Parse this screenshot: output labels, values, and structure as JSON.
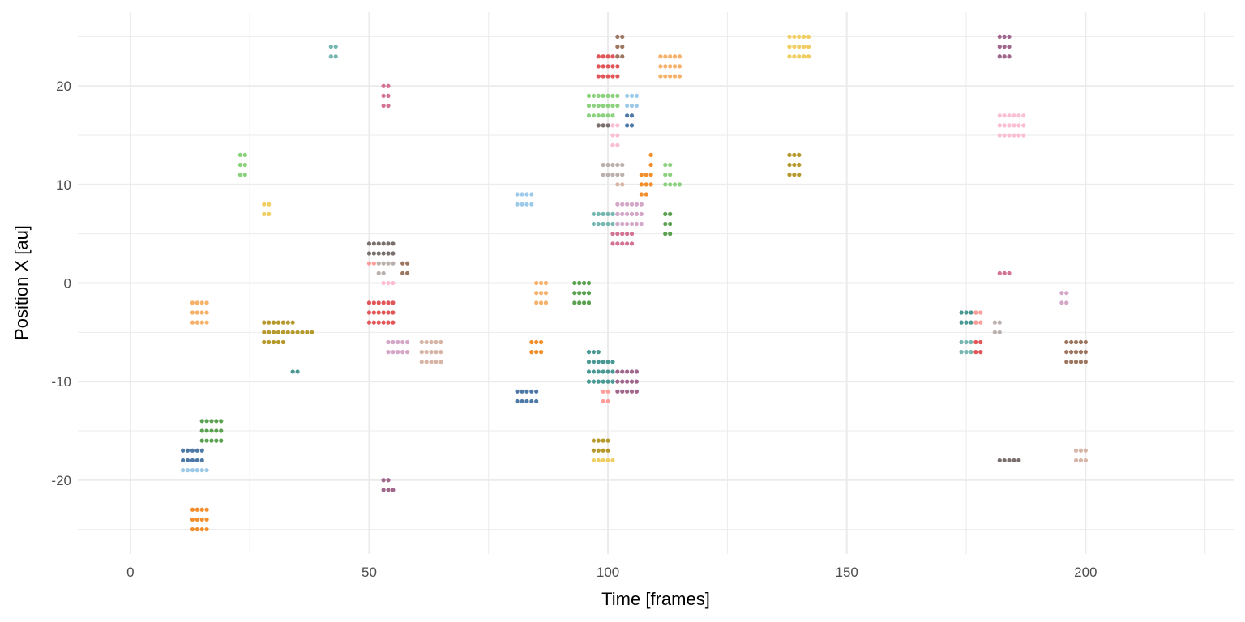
{
  "chart_data": {
    "type": "scatter",
    "title": "",
    "xlabel": "Time [frames]",
    "ylabel": "Position X [au]",
    "xlim": [
      -11,
      231
    ],
    "ylim": [
      -27.5,
      27.5
    ],
    "x_ticks": [
      0,
      50,
      100,
      150,
      200
    ],
    "y_ticks": [
      -20,
      -10,
      0,
      10,
      20
    ],
    "x_tick_labels": [
      "0",
      "50",
      "100",
      "150",
      "200"
    ],
    "y_tick_labels": [
      "-20",
      "-10",
      "0",
      "10",
      "20"
    ],
    "grid": true,
    "legend": "none",
    "background": "#ffffff",
    "grid_color": "#ebebeb",
    "series": [
      {
        "color": "#f28e2b",
        "clusters": [
          {
            "x0": 13,
            "n": 4,
            "ys": [
              -23,
              -24,
              -25
            ]
          },
          {
            "x0": 84,
            "n": 3,
            "ys": [
              -6,
              -7
            ]
          },
          {
            "x0": 107,
            "n": 3,
            "ys": [
              11,
              10
            ]
          },
          {
            "x0": 107,
            "n": 2,
            "ys": [
              9
            ]
          },
          {
            "x0": 109,
            "n": 1,
            "ys": [
              13,
              12
            ]
          }
        ]
      },
      {
        "color": "#4e79a7",
        "clusters": [
          {
            "x0": 11,
            "n": 5,
            "ys": [
              -17,
              -18
            ]
          },
          {
            "x0": 81,
            "n": 5,
            "ys": [
              -11,
              -12
            ]
          },
          {
            "x0": 104,
            "n": 2,
            "ys": [
              17,
              16
            ]
          }
        ]
      },
      {
        "color": "#9ecae9",
        "clusters": [
          {
            "x0": 11,
            "n": 6,
            "ys": [
              -19
            ]
          },
          {
            "x0": 81,
            "n": 4,
            "ys": [
              9,
              8
            ]
          },
          {
            "x0": 104,
            "n": 3,
            "ys": [
              19,
              18
            ]
          }
        ]
      },
      {
        "color": "#59a14f",
        "clusters": [
          {
            "x0": 15,
            "n": 5,
            "ys": [
              -14,
              -15,
              -16
            ]
          },
          {
            "x0": 93,
            "n": 4,
            "ys": [
              0,
              -1,
              -2
            ]
          },
          {
            "x0": 112,
            "n": 2,
            "ys": [
              7,
              6,
              5
            ]
          }
        ]
      },
      {
        "color": "#f6b26b",
        "clusters": [
          {
            "x0": 13,
            "n": 4,
            "ys": [
              -2,
              -3,
              -4
            ]
          },
          {
            "x0": 85,
            "n": 3,
            "ys": [
              0,
              -1,
              -2
            ]
          },
          {
            "x0": 111,
            "n": 5,
            "ys": [
              23,
              22,
              21
            ]
          }
        ]
      },
      {
        "color": "#8cd17d",
        "clusters": [
          {
            "x0": 23,
            "n": 2,
            "ys": [
              13,
              12,
              11
            ]
          },
          {
            "x0": 96,
            "n": 7,
            "ys": [
              19,
              18
            ]
          },
          {
            "x0": 96,
            "n": 6,
            "ys": [
              17
            ]
          },
          {
            "x0": 112,
            "n": 2,
            "ys": [
              12,
              11
            ]
          },
          {
            "x0": 112,
            "n": 4,
            "ys": [
              10
            ]
          }
        ]
      },
      {
        "color": "#f1ce63",
        "clusters": [
          {
            "x0": 28,
            "n": 2,
            "ys": [
              8,
              7
            ]
          },
          {
            "x0": 97,
            "n": 5,
            "ys": [
              -18
            ]
          },
          {
            "x0": 138,
            "n": 5,
            "ys": [
              25,
              24,
              23
            ]
          }
        ]
      },
      {
        "color": "#b6992d",
        "clusters": [
          {
            "x0": 28,
            "n": 7,
            "ys": [
              -4
            ]
          },
          {
            "x0": 28,
            "n": 11,
            "ys": [
              -5
            ]
          },
          {
            "x0": 28,
            "n": 5,
            "ys": [
              -6
            ]
          },
          {
            "x0": 97,
            "n": 4,
            "ys": [
              -16,
              -17
            ]
          },
          {
            "x0": 138,
            "n": 3,
            "ys": [
              13,
              12,
              11
            ]
          }
        ]
      },
      {
        "color": "#76b7b2",
        "clusters": [
          {
            "x0": 42,
            "n": 2,
            "ys": [
              24,
              23
            ]
          },
          {
            "x0": 97,
            "n": 6,
            "ys": [
              7,
              6
            ]
          },
          {
            "x0": 174,
            "n": 3,
            "ys": [
              -6,
              -7
            ]
          }
        ]
      },
      {
        "color": "#499894",
        "clusters": [
          {
            "x0": 34,
            "n": 2,
            "ys": [
              -9
            ]
          },
          {
            "x0": 96,
            "n": 3,
            "ys": [
              -7
            ]
          },
          {
            "x0": 96,
            "n": 6,
            "ys": [
              -8,
              -9,
              -10
            ]
          },
          {
            "x0": 174,
            "n": 4,
            "ys": [
              -3,
              -4
            ]
          }
        ]
      },
      {
        "color": "#e15759",
        "clusters": [
          {
            "x0": 50,
            "n": 6,
            "ys": [
              -2,
              -3,
              -4
            ]
          },
          {
            "x0": 98,
            "n": 5,
            "ys": [
              23,
              22,
              21
            ]
          },
          {
            "x0": 177,
            "n": 2,
            "ys": [
              -6,
              -7
            ]
          }
        ]
      },
      {
        "color": "#ff9d9a",
        "clusters": [
          {
            "x0": 50,
            "n": 2,
            "ys": [
              2
            ]
          },
          {
            "x0": 99,
            "n": 2,
            "ys": [
              -11,
              -12
            ]
          },
          {
            "x0": 177,
            "n": 2,
            "ys": [
              -3,
              -4
            ]
          }
        ]
      },
      {
        "color": "#79706e",
        "clusters": [
          {
            "x0": 50,
            "n": 6,
            "ys": [
              4,
              3
            ]
          },
          {
            "x0": 98,
            "n": 3,
            "ys": [
              16
            ]
          },
          {
            "x0": 182,
            "n": 5,
            "ys": [
              -18
            ]
          }
        ]
      },
      {
        "color": "#bab0ac",
        "clusters": [
          {
            "x0": 52,
            "n": 4,
            "ys": [
              2
            ]
          },
          {
            "x0": 52,
            "n": 2,
            "ys": [
              1
            ]
          },
          {
            "x0": 99,
            "n": 5,
            "ys": [
              12,
              11
            ]
          },
          {
            "x0": 181,
            "n": 2,
            "ys": [
              -4,
              -5
            ]
          }
        ]
      },
      {
        "color": "#d4a6c8",
        "clusters": [
          {
            "x0": 54,
            "n": 5,
            "ys": [
              -6,
              -7
            ]
          },
          {
            "x0": 102,
            "n": 6,
            "ys": [
              8,
              7,
              6
            ]
          },
          {
            "x0": 195,
            "n": 2,
            "ys": [
              -1,
              -2
            ]
          }
        ]
      },
      {
        "color": "#fabfd2",
        "clusters": [
          {
            "x0": 53,
            "n": 3,
            "ys": [
              0
            ]
          },
          {
            "x0": 101,
            "n": 2,
            "ys": [
              16,
              15,
              14
            ]
          },
          {
            "x0": 182,
            "n": 6,
            "ys": [
              17,
              16,
              15
            ]
          }
        ]
      },
      {
        "color": "#d37295",
        "clusters": [
          {
            "x0": 53,
            "n": 2,
            "ys": [
              20,
              19,
              18
            ]
          },
          {
            "x0": 101,
            "n": 5,
            "ys": [
              5,
              4
            ]
          },
          {
            "x0": 182,
            "n": 3,
            "ys": [
              1
            ]
          }
        ]
      },
      {
        "color": "#9d7660",
        "clusters": [
          {
            "x0": 57,
            "n": 2,
            "ys": [
              2,
              1
            ]
          },
          {
            "x0": 102,
            "n": 2,
            "ys": [
              25,
              24,
              23
            ]
          },
          {
            "x0": 196,
            "n": 5,
            "ys": [
              -6,
              -7,
              -8
            ]
          }
        ]
      },
      {
        "color": "#d7b5a6",
        "clusters": [
          {
            "x0": 61,
            "n": 5,
            "ys": [
              -6,
              -7,
              -8
            ]
          },
          {
            "x0": 102,
            "n": 2,
            "ys": [
              10
            ]
          },
          {
            "x0": 198,
            "n": 3,
            "ys": [
              -17,
              -18
            ]
          }
        ]
      },
      {
        "color": "#a0668c",
        "clusters": [
          {
            "x0": 53,
            "n": 2,
            "ys": [
              -20
            ]
          },
          {
            "x0": 53,
            "n": 3,
            "ys": [
              -21
            ]
          },
          {
            "x0": 102,
            "n": 5,
            "ys": [
              -9,
              -10,
              -11
            ]
          },
          {
            "x0": 182,
            "n": 3,
            "ys": [
              25,
              24,
              23
            ]
          }
        ]
      }
    ]
  }
}
